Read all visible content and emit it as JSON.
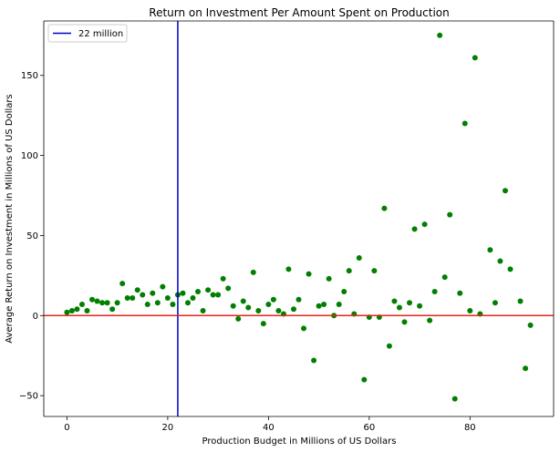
{
  "chart_data": {
    "type": "scatter",
    "title": "Return on Investment Per Amount Spent on Production",
    "xlabel": "Production Budget in Millions of US Dollars",
    "ylabel": "Average Return on Investment in Millions of US Dollars",
    "xlim": [
      -4.6,
      96.6
    ],
    "ylim": [
      -63,
      184
    ],
    "x_ticks": [
      0,
      20,
      40,
      60,
      80
    ],
    "y_ticks": [
      -50,
      0,
      50,
      100,
      150
    ],
    "grid": false,
    "legend": {
      "placement": "top-left",
      "entries": [
        {
          "label": "22 million",
          "color": "#0000cd"
        }
      ]
    },
    "reference_lines": [
      {
        "orientation": "vertical",
        "value": 22,
        "color": "#0000cd",
        "label": "22 million"
      },
      {
        "orientation": "horizontal",
        "value": 0,
        "color": "#e8251a"
      }
    ],
    "marker_color": "#008000",
    "points": [
      [
        0,
        2
      ],
      [
        1,
        3
      ],
      [
        2,
        4
      ],
      [
        3,
        7
      ],
      [
        4,
        3
      ],
      [
        5,
        10
      ],
      [
        6,
        9
      ],
      [
        7,
        8
      ],
      [
        8,
        8
      ],
      [
        9,
        4
      ],
      [
        10,
        8
      ],
      [
        11,
        20
      ],
      [
        12,
        11
      ],
      [
        13,
        11
      ],
      [
        14,
        16
      ],
      [
        15,
        13
      ],
      [
        16,
        7
      ],
      [
        17,
        14
      ],
      [
        18,
        8
      ],
      [
        19,
        18
      ],
      [
        20,
        11
      ],
      [
        21,
        7
      ],
      [
        22,
        13
      ],
      [
        23,
        14
      ],
      [
        24,
        8
      ],
      [
        25,
        11
      ],
      [
        26,
        15
      ],
      [
        27,
        3
      ],
      [
        28,
        16
      ],
      [
        29,
        13
      ],
      [
        30,
        13
      ],
      [
        31,
        23
      ],
      [
        32,
        17
      ],
      [
        33,
        6
      ],
      [
        34,
        -2
      ],
      [
        35,
        9
      ],
      [
        36,
        5
      ],
      [
        37,
        27
      ],
      [
        38,
        3
      ],
      [
        39,
        -5
      ],
      [
        40,
        7
      ],
      [
        41,
        10
      ],
      [
        42,
        3
      ],
      [
        43,
        1
      ],
      [
        44,
        29
      ],
      [
        45,
        4
      ],
      [
        46,
        10
      ],
      [
        47,
        -8
      ],
      [
        48,
        26
      ],
      [
        49,
        -28
      ],
      [
        50,
        6
      ],
      [
        51,
        7
      ],
      [
        52,
        23
      ],
      [
        53,
        0
      ],
      [
        54,
        7
      ],
      [
        55,
        15
      ],
      [
        56,
        28
      ],
      [
        57,
        1
      ],
      [
        58,
        36
      ],
      [
        59,
        -40
      ],
      [
        60,
        -1
      ],
      [
        61,
        28
      ],
      [
        62,
        -1
      ],
      [
        63,
        67
      ],
      [
        64,
        -19
      ],
      [
        65,
        9
      ],
      [
        66,
        5
      ],
      [
        67,
        -4
      ],
      [
        68,
        8
      ],
      [
        69,
        54
      ],
      [
        70,
        6
      ],
      [
        71,
        57
      ],
      [
        72,
        -3
      ],
      [
        73,
        15
      ],
      [
        74,
        175
      ],
      [
        75,
        24
      ],
      [
        76,
        63
      ],
      [
        77,
        -52
      ],
      [
        78,
        14
      ],
      [
        79,
        120
      ],
      [
        80,
        3
      ],
      [
        81,
        161
      ],
      [
        82,
        1
      ],
      [
        84,
        41
      ],
      [
        85,
        8
      ],
      [
        86,
        34
      ],
      [
        87,
        78
      ],
      [
        88,
        29
      ],
      [
        90,
        9
      ],
      [
        91,
        -33
      ],
      [
        92,
        -6
      ]
    ]
  }
}
